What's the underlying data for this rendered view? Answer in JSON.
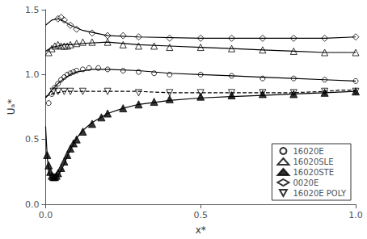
{
  "chart_data": {
    "type": "scatter",
    "xlabel": "x*",
    "ylabel": "Uₐ*",
    "xlim": [
      0.0,
      1.0
    ],
    "ylim": [
      0.0,
      1.5
    ],
    "xticks": [
      {
        "value": 0.0,
        "label": "0.0"
      },
      {
        "value": 0.5,
        "label": "0.5"
      },
      {
        "value": 1.0,
        "label": "1.0"
      }
    ],
    "yticks": [
      {
        "value": 0.0,
        "label": "0.0"
      },
      {
        "value": 0.5,
        "label": "0.5"
      },
      {
        "value": 1.0,
        "label": "1.0"
      },
      {
        "value": 1.5,
        "label": "1.5"
      }
    ],
    "grid": false,
    "legend": "lower right",
    "color": "#000000",
    "series": [
      {
        "type": "line",
        "line_style": "solid",
        "x": [
          0.0,
          0.005,
          0.01,
          0.015,
          0.02,
          0.03,
          0.04,
          0.05,
          0.06,
          0.07,
          0.08,
          0.1,
          0.12,
          0.15,
          0.2,
          0.25,
          0.3,
          0.4,
          0.5,
          0.6,
          0.7,
          0.8,
          0.9,
          1.0
        ],
        "values": [
          0.6,
          0.38,
          0.25,
          0.21,
          0.2,
          0.2,
          0.22,
          0.26,
          0.31,
          0.37,
          0.42,
          0.51,
          0.57,
          0.63,
          0.7,
          0.74,
          0.77,
          0.8,
          0.82,
          0.83,
          0.84,
          0.85,
          0.86,
          0.87
        ]
      },
      {
        "type": "line",
        "line_style": "solid",
        "x": [
          0.0,
          0.02,
          0.04,
          0.06,
          0.08,
          0.12,
          0.2,
          0.3,
          0.5,
          0.7,
          0.9,
          1.0
        ],
        "values": [
          1.38,
          1.42,
          1.43,
          1.41,
          1.38,
          1.34,
          1.3,
          1.29,
          1.28,
          1.28,
          1.28,
          1.29
        ]
      },
      {
        "type": "line",
        "line_style": "solid",
        "x": [
          0.0,
          0.02,
          0.04,
          0.06,
          0.08,
          0.12,
          0.2,
          0.3,
          0.4,
          0.5,
          0.6,
          0.7,
          0.8,
          0.9,
          1.0
        ],
        "values": [
          1.18,
          1.21,
          1.22,
          1.23,
          1.23,
          1.24,
          1.25,
          1.23,
          1.22,
          1.21,
          1.2,
          1.19,
          1.18,
          1.17,
          1.17
        ]
      },
      {
        "type": "line",
        "line_style": "solid",
        "x": [
          0.0,
          0.02,
          0.04,
          0.06,
          0.08,
          0.1,
          0.15,
          0.2,
          0.3,
          0.4,
          0.5,
          0.6,
          0.7,
          0.8,
          0.9,
          1.0
        ],
        "values": [
          0.82,
          0.88,
          0.93,
          0.97,
          1.0,
          1.02,
          1.04,
          1.04,
          1.03,
          1.01,
          1.0,
          0.99,
          0.98,
          0.97,
          0.96,
          0.95
        ]
      },
      {
        "type": "line",
        "line_style": "dashed",
        "x": [
          0.0,
          0.02,
          0.04,
          0.06,
          0.1,
          0.15,
          0.2,
          0.3,
          0.4,
          0.5,
          0.6,
          0.7,
          0.8,
          0.9,
          0.95,
          1.0
        ],
        "values": [
          0.83,
          0.85,
          0.86,
          0.87,
          0.87,
          0.87,
          0.87,
          0.87,
          0.86,
          0.86,
          0.86,
          0.86,
          0.86,
          0.87,
          0.88,
          0.88
        ]
      },
      {
        "type": "scatter",
        "name": "16020E",
        "marker": "open_circle",
        "x": [
          0.01,
          0.02,
          0.03,
          0.04,
          0.05,
          0.06,
          0.07,
          0.08,
          0.09,
          0.1,
          0.12,
          0.14,
          0.17,
          0.2,
          0.25,
          0.3,
          0.35,
          0.4,
          0.5,
          0.6,
          0.7,
          0.8,
          0.9,
          1.0
        ],
        "values": [
          0.78,
          0.85,
          0.9,
          0.93,
          0.96,
          0.98,
          1.0,
          1.01,
          1.02,
          1.03,
          1.04,
          1.05,
          1.05,
          1.04,
          1.03,
          1.02,
          1.01,
          1.0,
          1.0,
          0.99,
          0.97,
          0.97,
          0.96,
          0.95
        ]
      },
      {
        "type": "scatter",
        "name": "16020SLE",
        "marker": "open_triangle",
        "x": [
          0.01,
          0.02,
          0.03,
          0.04,
          0.05,
          0.06,
          0.07,
          0.08,
          0.1,
          0.12,
          0.15,
          0.2,
          0.25,
          0.3,
          0.35,
          0.4,
          0.5,
          0.6,
          0.7,
          0.8,
          0.9,
          1.0
        ],
        "values": [
          1.17,
          1.2,
          1.22,
          1.23,
          1.22,
          1.22,
          1.22,
          1.23,
          1.24,
          1.25,
          1.25,
          1.25,
          1.23,
          1.22,
          1.22,
          1.21,
          1.21,
          1.2,
          1.19,
          1.18,
          1.17,
          1.17
        ]
      },
      {
        "type": "scatter",
        "name": "16020STE",
        "marker": "filled_triangle",
        "x": [
          0.005,
          0.01,
          0.015,
          0.02,
          0.025,
          0.03,
          0.035,
          0.04,
          0.05,
          0.06,
          0.07,
          0.08,
          0.09,
          0.1,
          0.12,
          0.15,
          0.18,
          0.2,
          0.25,
          0.3,
          0.35,
          0.4,
          0.5,
          0.6,
          0.7,
          0.8,
          0.9,
          1.0
        ],
        "values": [
          0.38,
          0.3,
          0.25,
          0.22,
          0.21,
          0.21,
          0.22,
          0.24,
          0.28,
          0.33,
          0.38,
          0.43,
          0.47,
          0.5,
          0.56,
          0.62,
          0.67,
          0.7,
          0.74,
          0.77,
          0.79,
          0.81,
          0.83,
          0.84,
          0.85,
          0.85,
          0.86,
          0.87
        ]
      },
      {
        "type": "scatter",
        "name": "0020E",
        "marker": "open_diamond",
        "x": [
          0.04,
          0.05,
          0.06,
          0.08,
          0.1,
          0.15,
          0.2,
          0.25,
          0.3,
          0.4,
          0.5,
          0.6,
          0.7,
          0.8,
          0.9,
          1.0
        ],
        "values": [
          1.43,
          1.44,
          1.42,
          1.38,
          1.35,
          1.32,
          1.3,
          1.3,
          1.29,
          1.28,
          1.28,
          1.28,
          1.28,
          1.28,
          1.28,
          1.29
        ]
      },
      {
        "type": "scatter",
        "name": "16020E POLY",
        "marker": "open_triangle_down",
        "x": [
          0.025,
          0.04,
          0.06,
          0.08,
          0.12,
          0.2,
          0.3,
          0.4,
          0.5,
          0.6,
          0.7,
          0.8,
          0.9,
          1.0
        ],
        "values": [
          0.87,
          0.87,
          0.87,
          0.87,
          0.87,
          0.87,
          0.86,
          0.86,
          0.86,
          0.86,
          0.86,
          0.86,
          0.87,
          0.87
        ]
      }
    ]
  }
}
